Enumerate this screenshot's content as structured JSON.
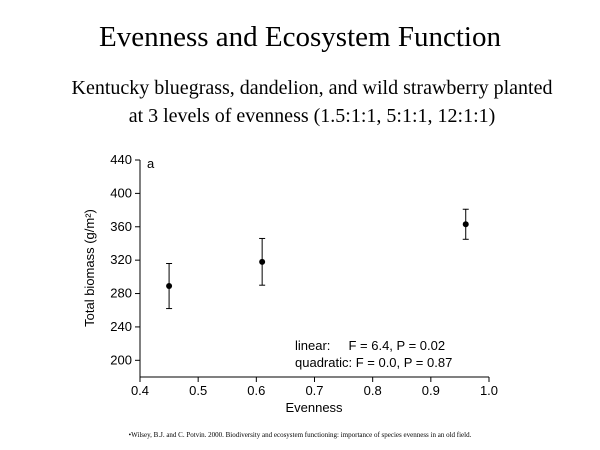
{
  "header": {
    "title": "Evenness and Ecosystem Function",
    "subtitle_lines": [
      "Kentucky bluegrass, dandelion, and wild strawberry planted",
      "at 3 levels of evenness (1.5:1:1, 5:1:1, 12:1:1)"
    ]
  },
  "chart_data": {
    "type": "errorbar",
    "panel_label": "a",
    "x_label": "Evenness",
    "y_label": "Total biomass (g/m²)",
    "x": [
      0.45,
      0.61,
      0.96
    ],
    "values": [
      289,
      318,
      363
    ],
    "errors": [
      27,
      28,
      18
    ],
    "xlim": [
      0.4,
      1.0
    ],
    "xticks": [
      0.4,
      0.5,
      0.6,
      0.7,
      0.8,
      0.9,
      {
        "value": 1.0,
        "label": "1.0"
      }
    ],
    "ylim": [
      180,
      440
    ],
    "yticks": [
      200,
      240,
      280,
      320,
      360,
      400,
      440
    ],
    "color": "#000000",
    "annotations": [
      "linear:     F = 6.4, P = 0.02",
      "quadratic: F = 0.0, P = 0.87"
    ]
  },
  "footer": {
    "citation": "•Wilsey, B.J. and C. Potvin. 2000. Biodiversity and ecosystem functioning: importance of species evenness in an old field."
  }
}
